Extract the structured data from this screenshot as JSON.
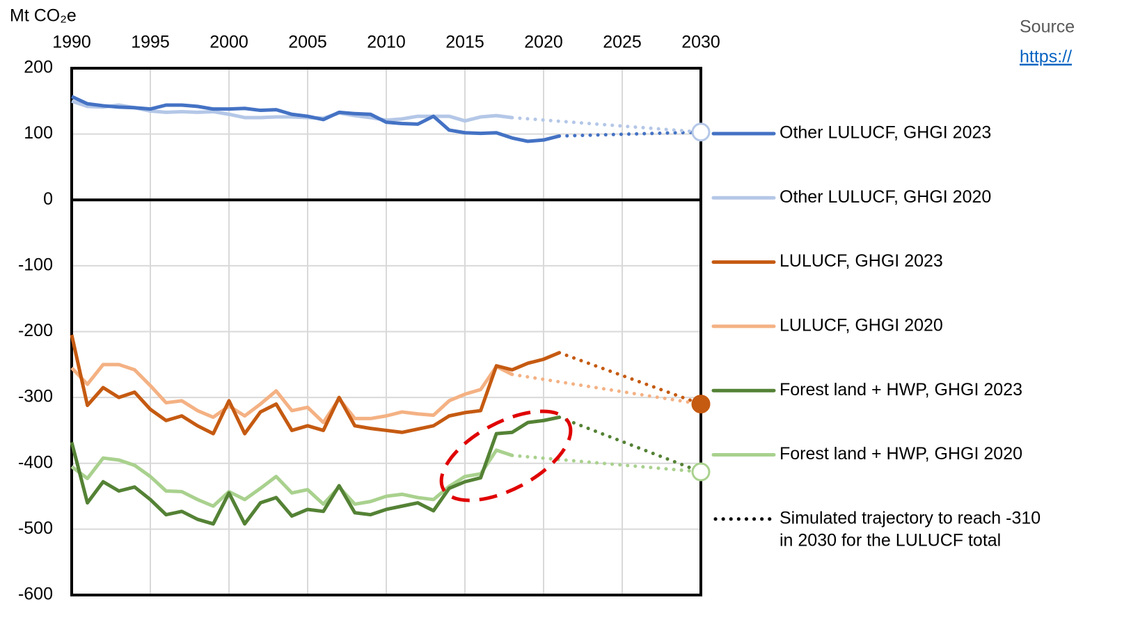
{
  "chart_data": {
    "type": "line",
    "y_label": "Mt CO₂e",
    "source": [
      "Source",
      "https://"
    ],
    "xlim": [
      1990,
      2030
    ],
    "xticks": [
      1990,
      1995,
      2000,
      2005,
      2010,
      2015,
      2020,
      2025,
      2030
    ],
    "ylim": [
      -600,
      200
    ],
    "yticks": [
      200,
      100,
      0,
      -100,
      -200,
      -300,
      -400,
      -500,
      -600
    ],
    "grid": true,
    "series": [
      {
        "name": "Other LULUCF, GHGI 2023",
        "color": "#4472c4",
        "x": [
          1990,
          1991,
          1992,
          1993,
          1994,
          1995,
          1996,
          1997,
          1998,
          1999,
          2000,
          2001,
          2002,
          2003,
          2004,
          2005,
          2006,
          2007,
          2008,
          2009,
          2010,
          2011,
          2012,
          2013,
          2014,
          2015,
          2016,
          2017,
          2018,
          2019,
          2020,
          2021
        ],
        "values": [
          157,
          146,
          143,
          141,
          140,
          138,
          144,
          144,
          142,
          138,
          138,
          139,
          136,
          137,
          130,
          127,
          122,
          133,
          131,
          130,
          118,
          116,
          115,
          127,
          106,
          102,
          101,
          102,
          94,
          89,
          91,
          97
        ]
      },
      {
        "name": "Other LULUCF, GHGI 2020",
        "color": "#b4c7e7",
        "x": [
          1990,
          1991,
          1992,
          1993,
          1994,
          1995,
          1996,
          1997,
          1998,
          1999,
          2000,
          2001,
          2002,
          2003,
          2004,
          2005,
          2006,
          2007,
          2008,
          2009,
          2010,
          2011,
          2012,
          2013,
          2014,
          2015,
          2016,
          2017,
          2018
        ],
        "values": [
          150,
          142,
          141,
          144,
          140,
          135,
          133,
          134,
          133,
          134,
          130,
          125,
          125,
          126,
          126,
          125,
          124,
          132,
          128,
          125,
          121,
          123,
          127,
          127,
          127,
          120,
          126,
          128,
          125
        ]
      },
      {
        "name": "LULUCF, GHGI 2023",
        "color": "#c55a11",
        "x": [
          1990,
          1991,
          1992,
          1993,
          1994,
          1995,
          1996,
          1997,
          1998,
          1999,
          2000,
          2001,
          2002,
          2003,
          2004,
          2005,
          2006,
          2007,
          2008,
          2009,
          2010,
          2011,
          2012,
          2013,
          2014,
          2015,
          2016,
          2017,
          2018,
          2019,
          2020,
          2021
        ],
        "values": [
          -205,
          -312,
          -285,
          -300,
          -292,
          -318,
          -335,
          -328,
          -343,
          -355,
          -305,
          -355,
          -322,
          -310,
          -350,
          -343,
          -350,
          -300,
          -343,
          -347,
          -350,
          -353,
          -348,
          -343,
          -328,
          -323,
          -320,
          -252,
          -258,
          -248,
          -242,
          -232
        ]
      },
      {
        "name": "LULUCF, GHGI 2020",
        "color": "#f4b183",
        "x": [
          1990,
          1991,
          1992,
          1993,
          1994,
          1995,
          1996,
          1997,
          1998,
          1999,
          2000,
          2001,
          2002,
          2003,
          2004,
          2005,
          2006,
          2007,
          2008,
          2009,
          2010,
          2011,
          2012,
          2013,
          2014,
          2015,
          2016,
          2017,
          2018
        ],
        "values": [
          -255,
          -280,
          -250,
          -250,
          -258,
          -282,
          -308,
          -305,
          -320,
          -330,
          -313,
          -328,
          -310,
          -290,
          -320,
          -315,
          -338,
          -302,
          -332,
          -332,
          -328,
          -322,
          -325,
          -327,
          -305,
          -295,
          -288,
          -253,
          -265
        ]
      },
      {
        "name": "Forest land + HWP, GHGI 2023",
        "color": "#548235",
        "x": [
          1990,
          1991,
          1992,
          1993,
          1994,
          1995,
          1996,
          1997,
          1998,
          1999,
          2000,
          2001,
          2002,
          2003,
          2004,
          2005,
          2006,
          2007,
          2008,
          2009,
          2010,
          2011,
          2012,
          2013,
          2014,
          2015,
          2016,
          2017,
          2018,
          2019,
          2020,
          2021
        ],
        "values": [
          -368,
          -460,
          -428,
          -442,
          -436,
          -455,
          -478,
          -473,
          -485,
          -492,
          -445,
          -492,
          -460,
          -452,
          -480,
          -470,
          -473,
          -434,
          -475,
          -478,
          -470,
          -465,
          -460,
          -472,
          -438,
          -428,
          -422,
          -355,
          -353,
          -338,
          -335,
          -330
        ]
      },
      {
        "name": "Forest land + HWP, GHGI 2020",
        "color": "#a9d18e",
        "x": [
          1990,
          1991,
          1992,
          1993,
          1994,
          1995,
          1996,
          1997,
          1998,
          1999,
          2000,
          2001,
          2002,
          2003,
          2004,
          2005,
          2006,
          2007,
          2008,
          2009,
          2010,
          2011,
          2012,
          2013,
          2014,
          2015,
          2016,
          2017,
          2018
        ],
        "values": [
          -405,
          -423,
          -392,
          -395,
          -403,
          -420,
          -442,
          -443,
          -455,
          -465,
          -443,
          -455,
          -438,
          -420,
          -445,
          -440,
          -462,
          -436,
          -462,
          -458,
          -450,
          -447,
          -452,
          -455,
          -435,
          -420,
          -416,
          -380,
          -388
        ]
      }
    ],
    "trajectory_label": [
      "Simulated trajectory to reach -310",
      "in 2030 for the LULUCF total"
    ],
    "trajectory_color": "#000000",
    "trajectories": [
      {
        "color": "#4472c4",
        "x": [
          2021,
          2030
        ],
        "values": [
          97,
          103
        ],
        "marker": "none"
      },
      {
        "color": "#b4c7e7",
        "x": [
          2018,
          2030
        ],
        "values": [
          125,
          103
        ],
        "marker": "open"
      },
      {
        "color": "#c55a11",
        "x": [
          2021,
          2030
        ],
        "values": [
          -232,
          -310
        ],
        "marker": "filled"
      },
      {
        "color": "#f4b183",
        "x": [
          2018,
          2030
        ],
        "values": [
          -265,
          -310
        ],
        "marker": "none"
      },
      {
        "color": "#548235",
        "x": [
          2021,
          2030
        ],
        "values": [
          -330,
          -413
        ],
        "marker": "none"
      },
      {
        "color": "#a9d18e",
        "x": [
          2018,
          2030
        ],
        "values": [
          -388,
          -413
        ],
        "marker": "open"
      }
    ]
  }
}
